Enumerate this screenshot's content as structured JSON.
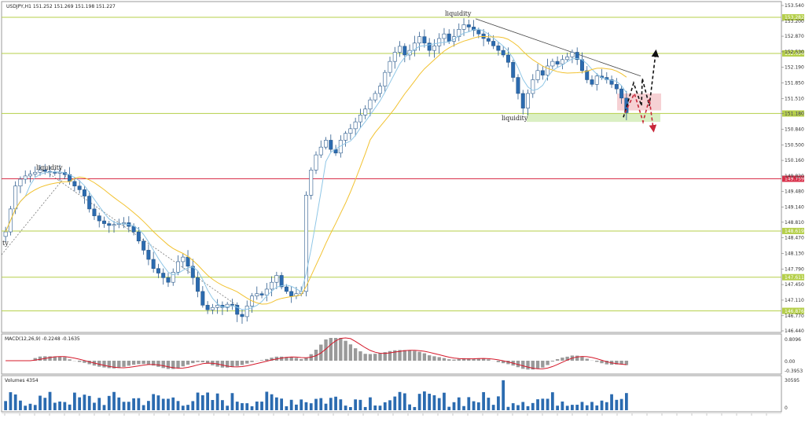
{
  "chart_data": {
    "type": "candlestick",
    "symbol_header": "USDJPY,H1 151.252 151.269 151.198 151.227",
    "macd_header": "MACD(12,26,9) -0.2248 -0.1635",
    "volume_header": "Volumes 4354",
    "price_axis": {
      "min": 146.44,
      "max": 153.54,
      "ticks": [
        "153.540",
        "153.200",
        "152.870",
        "152.530",
        "152.190",
        "151.850",
        "151.510",
        "151.180",
        "150.840",
        "150.500",
        "150.160",
        "149.820",
        "149.480",
        "149.140",
        "148.810",
        "148.470",
        "148.130",
        "147.790",
        "147.450",
        "147.110",
        "146.770",
        "146.440"
      ]
    },
    "levels": [
      {
        "price": 153.282,
        "label": "153.282",
        "color": "#b5cf4a"
      },
      {
        "price": 152.494,
        "label": "152.494",
        "color": "#b5cf4a"
      },
      {
        "price": 151.183,
        "label": "151.183",
        "color": "#b5cf4a"
      },
      {
        "price": 149.759,
        "label": "149.759",
        "color": "#d9304a"
      },
      {
        "price": 148.619,
        "label": "148.619",
        "color": "#b5cf4a"
      },
      {
        "price": 147.611,
        "label": "147.611",
        "color": "#b5cf4a"
      },
      {
        "price": 146.876,
        "label": "146.876",
        "color": "#b5cf4a"
      }
    ],
    "annotations": [
      "liquidity",
      "liquidity",
      "liquidity"
    ],
    "left_edge_label": "ty",
    "macd_axis": [
      "0.8096",
      "0.00",
      "-0.3953"
    ],
    "volume_axis": [
      "30595",
      "0"
    ],
    "close_series": [
      148.6,
      149.1,
      149.6,
      149.75,
      149.82,
      149.86,
      149.9,
      149.95,
      149.92,
      149.9,
      149.88,
      149.9,
      149.85,
      149.7,
      149.6,
      149.52,
      149.38,
      149.1,
      148.95,
      148.84,
      148.78,
      148.74,
      148.76,
      148.78,
      148.8,
      148.72,
      148.6,
      148.4,
      148.2,
      148.0,
      147.8,
      147.7,
      147.6,
      147.5,
      147.72,
      147.95,
      148.05,
      147.85,
      147.6,
      147.3,
      147.0,
      146.9,
      146.95,
      147.0,
      146.95,
      147.02,
      147.0,
      146.8,
      146.75,
      146.98,
      147.2,
      147.25,
      147.22,
      147.35,
      147.5,
      147.65,
      147.4,
      147.3,
      147.2,
      147.25,
      147.3,
      149.4,
      149.95,
      150.28,
      150.45,
      150.6,
      150.4,
      150.32,
      150.6,
      150.75,
      150.85,
      151.0,
      151.15,
      151.28,
      151.48,
      151.62,
      151.78,
      152.08,
      152.32,
      152.52,
      152.65,
      152.46,
      152.56,
      152.72,
      152.86,
      152.72,
      152.56,
      152.66,
      152.82,
      152.92,
      152.76,
      152.86,
      153.02,
      153.12,
      153.07,
      153.0,
      152.92,
      152.82,
      152.76,
      152.66,
      152.56,
      152.46,
      152.3,
      151.97,
      151.62,
      151.3,
      151.62,
      151.92,
      152.12,
      152.02,
      152.22,
      152.32,
      152.26,
      152.36,
      152.42,
      152.52,
      152.36,
      152.12,
      151.92,
      151.82,
      152.0,
      151.97,
      151.92,
      151.82,
      151.72,
      151.52,
      151.2
    ],
    "trendlines": 2,
    "forecast_paths": 2
  }
}
